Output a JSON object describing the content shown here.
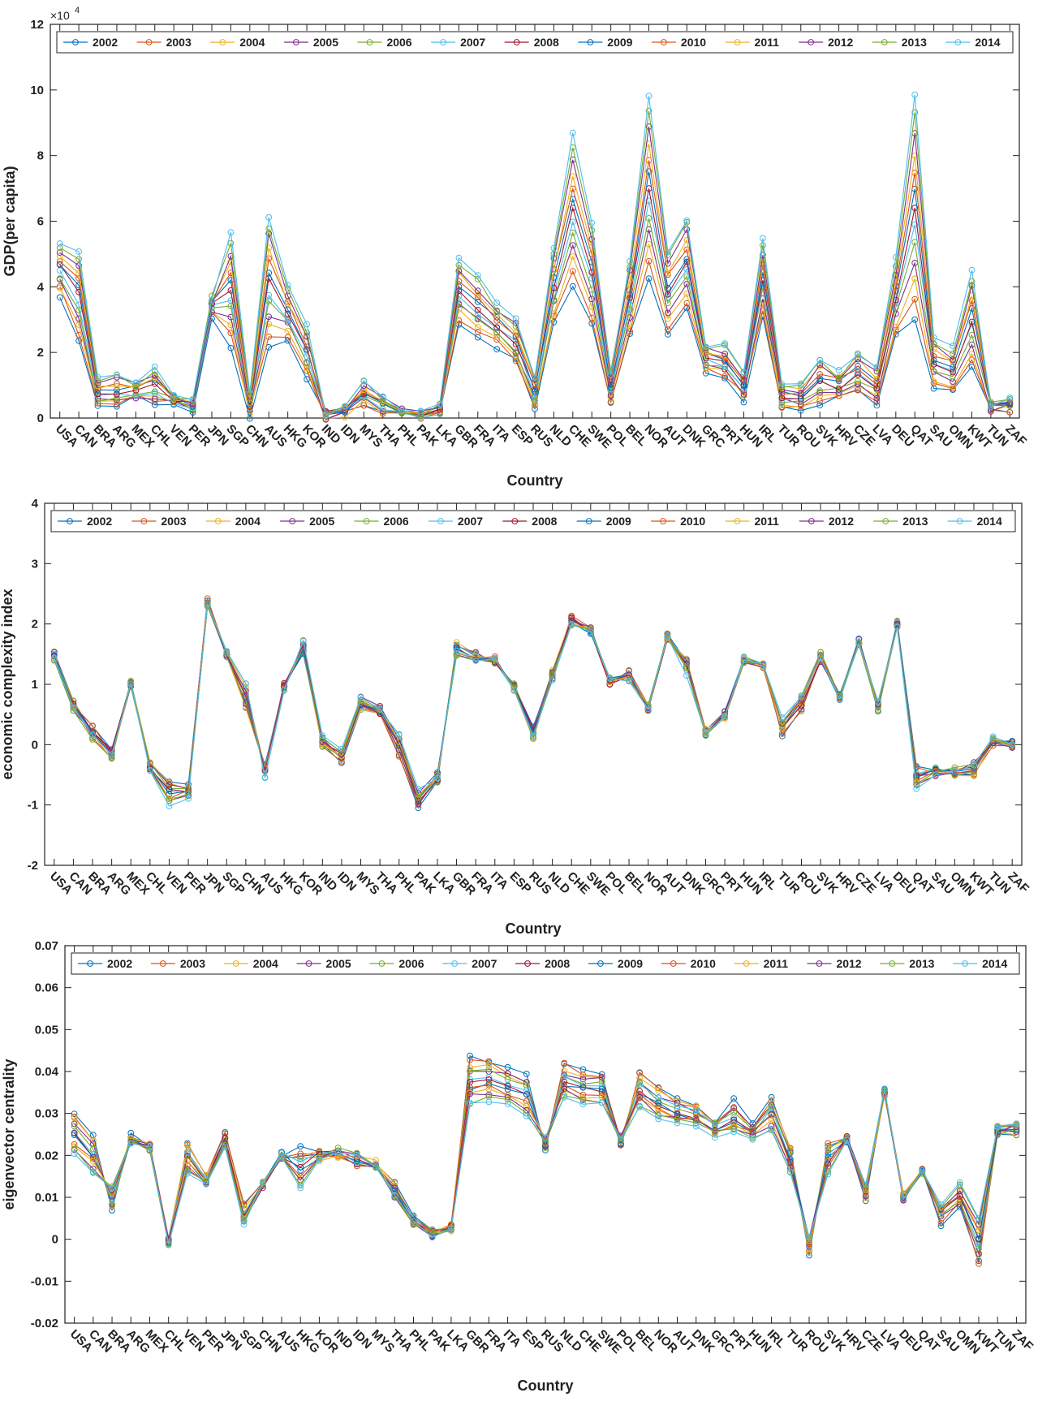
{
  "colors": [
    "#0072BD",
    "#D95319",
    "#EDB120",
    "#7E2F8E",
    "#77AC30",
    "#4DBEEE",
    "#A2142F"
  ],
  "years": [
    "2002",
    "2003",
    "2004",
    "2005",
    "2006",
    "2007",
    "2008",
    "2009",
    "2010",
    "2011",
    "2012",
    "2013",
    "2014"
  ],
  "chart_data": [
    {
      "type": "line",
      "xlabel": "Country",
      "ylabel": "GDP(per capita)",
      "exponent_label": "×10",
      "exponent_power": "4",
      "ylim": [
        0,
        12
      ],
      "yticks": [
        "0",
        "2",
        "4",
        "6",
        "8",
        "10",
        "12"
      ],
      "categories": [
        "USA",
        "CAN",
        "BRA",
        "ARG",
        "MEX",
        "CHL",
        "VEN",
        "PER",
        "JPN",
        "SGP",
        "CHN",
        "AUS",
        "HKG",
        "KOR",
        "IND",
        "IDN",
        "MYS",
        "THA",
        "PHL",
        "PAK",
        "LKA",
        "GBR",
        "FRA",
        "ITA",
        "ESP",
        "RUS",
        "NLD",
        "CHE",
        "SWE",
        "POL",
        "BEL",
        "NOR",
        "AUT",
        "DNK",
        "GRC",
        "PRT",
        "HUN",
        "IRL",
        "TUR",
        "ROU",
        "SVK",
        "HRV",
        "CZE",
        "LVA",
        "DEU",
        "QAT",
        "SAU",
        "OMN",
        "KWT",
        "TUN",
        "ZAF"
      ],
      "series_start": [
        3.8,
        2.4,
        0.3,
        0.3,
        0.6,
        0.4,
        0.4,
        0.2,
        3.1,
        2.2,
        0.1,
        2.1,
        2.4,
        1.2,
        0.05,
        0.1,
        0.4,
        0.2,
        0.1,
        0.05,
        0.1,
        2.9,
        2.5,
        2.2,
        1.7,
        0.3,
        2.9,
        4.1,
        2.9,
        0.5,
        2.5,
        4.3,
        2.6,
        3.3,
        1.4,
        1.3,
        0.6,
        3.2,
        0.3,
        0.2,
        0.5,
        0.6,
        0.8,
        0.4,
        2.5,
        3.0,
        0.9,
        0.8,
        1.6,
        0.2,
        0.25
      ],
      "series_end": [
        5.4,
        5.1,
        1.2,
        1.3,
        1.05,
        1.5,
        0.75,
        0.6,
        3.7,
        5.6,
        0.75,
        6.2,
        4.0,
        2.8,
        0.15,
        0.35,
        1.1,
        0.6,
        0.3,
        0.13,
        0.35,
        4.9,
        4.3,
        3.5,
        3.0,
        1.3,
        5.2,
        8.6,
        6.0,
        1.4,
        4.8,
        9.7,
        5.1,
        6.1,
        2.2,
        2.2,
        1.4,
        5.4,
        1.1,
        1.0,
        1.8,
        1.35,
        2.0,
        1.5,
        4.8,
        9.8,
        2.5,
        2.1,
        4.5,
        0.45,
        0.65
      ]
    },
    {
      "type": "line",
      "xlabel": "Country",
      "ylabel": "economic complexity index",
      "ylim": [
        -2,
        4
      ],
      "yticks": [
        "-2",
        "-1",
        "0",
        "1",
        "2",
        "3",
        "4"
      ],
      "categories": [
        "USA",
        "CAN",
        "BRA",
        "ARG",
        "MEX",
        "CHL",
        "VEN",
        "PER",
        "JPN",
        "SGP",
        "CHN",
        "AUS",
        "HKG",
        "KOR",
        "IND",
        "IDN",
        "MYS",
        "THA",
        "PHL",
        "PAK",
        "LKA",
        "GBR",
        "FRA",
        "ITA",
        "ESP",
        "RUS",
        "NLD",
        "CHE",
        "SWE",
        "POL",
        "BEL",
        "NOR",
        "AUT",
        "DNK",
        "GRC",
        "PRT",
        "HUN",
        "IRL",
        "TUR",
        "ROU",
        "SVK",
        "HRV",
        "CZE",
        "LVA",
        "DEU",
        "QAT",
        "SAU",
        "OMN",
        "KWT",
        "TUN",
        "ZAF"
      ],
      "series_start": [
        1.5,
        0.7,
        0.3,
        -0.1,
        1.0,
        -0.3,
        -0.6,
        -0.7,
        2.4,
        1.5,
        0.6,
        -0.3,
        1.0,
        1.5,
        0.0,
        -0.3,
        0.6,
        0.5,
        -0.2,
        -1.0,
        -0.6,
        1.7,
        1.5,
        1.4,
        1.0,
        0.3,
        1.2,
        2.1,
        1.9,
        1.0,
        1.2,
        0.6,
        1.8,
        1.4,
        0.2,
        0.5,
        1.4,
        1.3,
        0.2,
        0.6,
        1.4,
        0.8,
        1.7,
        0.6,
        2.0,
        -0.4,
        -0.4,
        -0.5,
        -0.5,
        0.0,
        0.0
      ],
      "series_end": [
        1.4,
        0.6,
        0.1,
        -0.2,
        1.0,
        -0.4,
        -1.0,
        -0.85,
        2.3,
        1.5,
        1.0,
        -0.5,
        0.9,
        1.7,
        0.1,
        -0.1,
        0.8,
        0.6,
        0.2,
        -0.8,
        -0.5,
        1.5,
        1.4,
        1.4,
        0.9,
        0.1,
        1.1,
        2.0,
        1.9,
        1.1,
        1.1,
        0.6,
        1.8,
        1.2,
        0.2,
        0.5,
        1.4,
        1.3,
        0.4,
        0.8,
        1.5,
        0.8,
        1.7,
        0.7,
        2.0,
        -0.7,
        -0.5,
        -0.4,
        -0.3,
        0.1,
        0.0
      ]
    },
    {
      "type": "line",
      "xlabel": "Country",
      "ylabel": "eigenvector centrality",
      "ylim": [
        -0.02,
        0.07
      ],
      "yticks": [
        "-0.02",
        "-0.01",
        "0",
        "0.01",
        "0.02",
        "0.03",
        "0.04",
        "0.05",
        "0.06",
        "0.07"
      ],
      "categories": [
        "USA",
        "CAN",
        "BRA",
        "ARG",
        "MEX",
        "CHL",
        "VEN",
        "PER",
        "JPN",
        "SGP",
        "CHN",
        "AUS",
        "HKG",
        "KOR",
        "IND",
        "IDN",
        "MYS",
        "THA",
        "PHL",
        "PAK",
        "LKA",
        "GBR",
        "FRA",
        "ITA",
        "ESP",
        "RUS",
        "NLD",
        "CHE",
        "SWE",
        "POL",
        "BEL",
        "NOR",
        "AUT",
        "DNK",
        "GRC",
        "PRT",
        "HUN",
        "IRL",
        "TUR",
        "ROU",
        "SVK",
        "HRV",
        "CZE",
        "LVA",
        "DEU",
        "QAT",
        "SAU",
        "OMN",
        "KWT",
        "TUN",
        "ZAF"
      ],
      "series_start": [
        0.03,
        0.024,
        0.007,
        0.025,
        0.022,
        0.0,
        0.023,
        0.015,
        0.025,
        0.008,
        0.013,
        0.02,
        0.022,
        0.021,
        0.02,
        0.018,
        0.018,
        0.013,
        0.005,
        0.002,
        0.003,
        0.043,
        0.043,
        0.041,
        0.039,
        0.022,
        0.042,
        0.04,
        0.04,
        0.023,
        0.04,
        0.036,
        0.033,
        0.032,
        0.028,
        0.033,
        0.027,
        0.034,
        0.022,
        -0.003,
        0.023,
        0.024,
        0.01,
        0.035,
        0.01,
        0.016,
        0.004,
        0.008,
        -0.006,
        0.025,
        0.025
      ],
      "series_end": [
        0.02,
        0.016,
        0.013,
        0.023,
        0.022,
        -0.001,
        0.016,
        0.013,
        0.022,
        0.003,
        0.013,
        0.02,
        0.012,
        0.019,
        0.021,
        0.02,
        0.018,
        0.01,
        0.004,
        0.001,
        0.002,
        0.032,
        0.033,
        0.032,
        0.03,
        0.024,
        0.034,
        0.032,
        0.032,
        0.024,
        0.032,
        0.029,
        0.028,
        0.027,
        0.025,
        0.025,
        0.024,
        0.026,
        0.016,
        0.001,
        0.016,
        0.024,
        0.013,
        0.035,
        0.01,
        0.016,
        0.008,
        0.013,
        0.005,
        0.027,
        0.028
      ]
    }
  ]
}
